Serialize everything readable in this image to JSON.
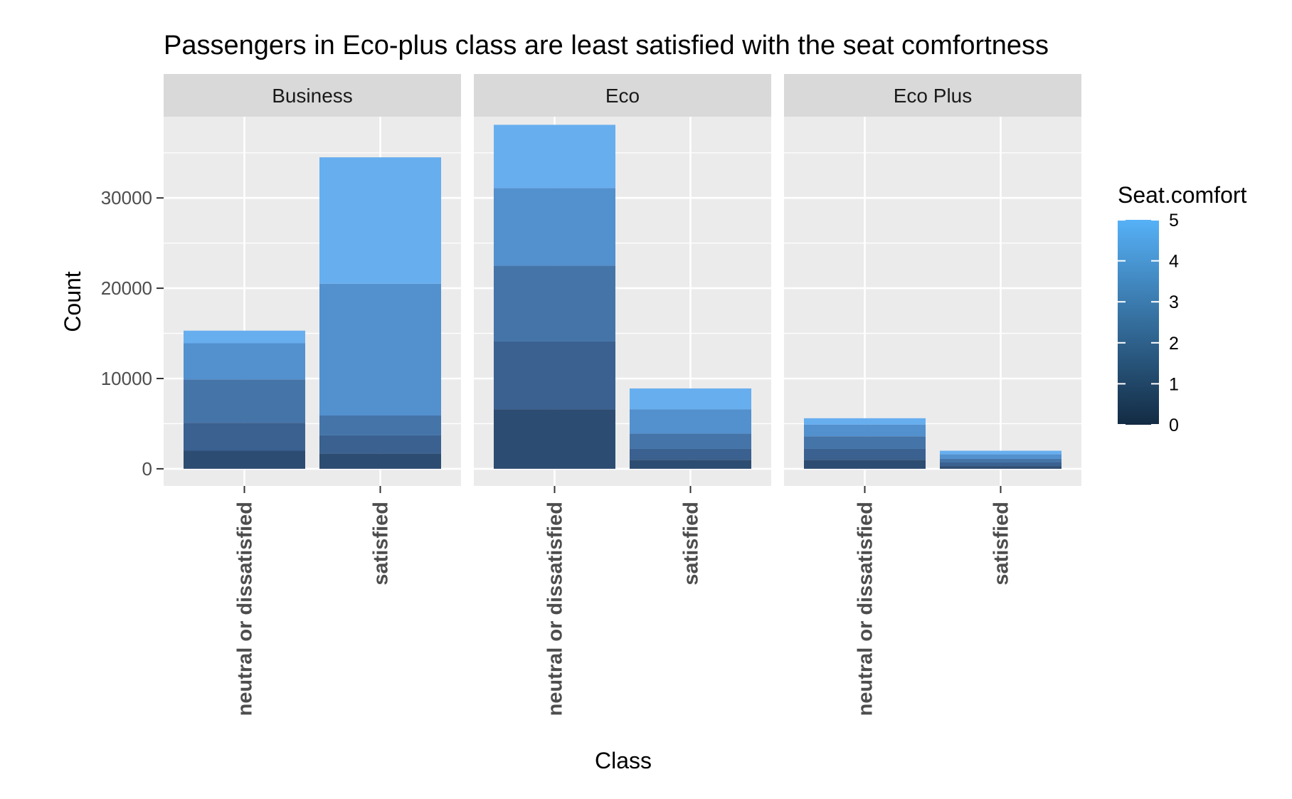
{
  "chart_data": {
    "type": "bar",
    "stacked": true,
    "faceted": true,
    "title": "Passengers in Eco-plus class are least satisfied with the seat comfortness",
    "xlabel": "Class",
    "ylabel": "Count",
    "ylim": [
      -1900,
      39000
    ],
    "y_ticks": [
      0,
      10000,
      20000,
      30000
    ],
    "y_tick_labels": [
      "0",
      "10000",
      "20000",
      "30000"
    ],
    "grid": true,
    "legend": {
      "title": "Seat.comfort",
      "position": "right",
      "type": "continuous",
      "ticks": [
        "0",
        "1",
        "2",
        "3",
        "4",
        "5"
      ],
      "color_low": "#132b43",
      "color_high": "#56b1f7"
    },
    "stack_levels": [
      0,
      1,
      2,
      3,
      4,
      5
    ],
    "level_colors": [
      "#253e5c",
      "#2d4c71",
      "#3a6190",
      "#4574a8",
      "#5290ce",
      "#67aeef"
    ],
    "categories": [
      "neutral or dissatisfied",
      "satisfied"
    ],
    "facets": [
      {
        "name": "Business",
        "bars": [
          {
            "category": "neutral or dissatisfied",
            "segments": [
              0,
              2000,
              3100,
              4800,
              4000,
              1400
            ],
            "total": 15300
          },
          {
            "category": "satisfied",
            "segments": [
              0,
              1700,
              2000,
              2200,
              14600,
              14000
            ],
            "total": 34500
          }
        ]
      },
      {
        "name": "Eco",
        "bars": [
          {
            "category": "neutral or dissatisfied",
            "segments": [
              0,
              6600,
              7500,
              8400,
              8600,
              7000
            ],
            "total": 38100
          },
          {
            "category": "satisfied",
            "segments": [
              0,
              1000,
              1200,
              1700,
              2700,
              2300
            ],
            "total": 8900
          }
        ]
      },
      {
        "name": "Eco Plus",
        "bars": [
          {
            "category": "neutral or dissatisfied",
            "segments": [
              0,
              1000,
              1200,
              1400,
              1300,
              700
            ],
            "total": 5600
          },
          {
            "category": "satisfied",
            "segments": [
              0,
              300,
              400,
              400,
              500,
              400
            ],
            "total": 2000
          }
        ]
      }
    ],
    "colors": {
      "panel_background": "#ebebeb",
      "strip_background": "#d9d9d9",
      "grid": "#ffffff",
      "axis_text": "#4d4d4d",
      "text": "#000000"
    }
  }
}
